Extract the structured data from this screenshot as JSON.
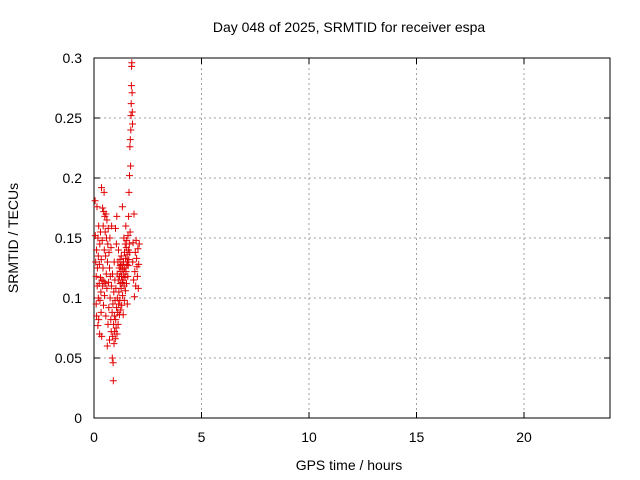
{
  "chart_data": {
    "type": "scatter",
    "title": "Day 048 of 2025, SRMTID for receiver espa",
    "xlabel": "GPS time / hours",
    "ylabel": "SRMTID / TECUs",
    "xlim": [
      0,
      24
    ],
    "ylim": [
      0,
      0.3
    ],
    "xticks": [
      0,
      5,
      10,
      15,
      20
    ],
    "xtick_labels": [
      "0",
      "5",
      "10",
      "15",
      "20"
    ],
    "yticks": [
      0,
      0.05,
      0.1,
      0.15,
      0.2,
      0.25,
      0.3
    ],
    "ytick_labels": [
      "0",
      "0.05",
      "0.1",
      "0.15",
      "0.2",
      "0.25",
      "0.3"
    ],
    "grid": true,
    "marker": "+",
    "color": "#e00000",
    "series": [
      {
        "name": "SRMTID",
        "points": [
          [
            0.05,
            0.181
          ],
          [
            0.06,
            0.152
          ],
          [
            0.08,
            0.13
          ],
          [
            0.1,
            0.118
          ],
          [
            0.1,
            0.095
          ],
          [
            0.12,
            0.14
          ],
          [
            0.12,
            0.085
          ],
          [
            0.14,
            0.176
          ],
          [
            0.15,
            0.11
          ],
          [
            0.16,
            0.125
          ],
          [
            0.18,
            0.15
          ],
          [
            0.18,
            0.077
          ],
          [
            0.2,
            0.1
          ],
          [
            0.2,
            0.135
          ],
          [
            0.22,
            0.16
          ],
          [
            0.22,
            0.082
          ],
          [
            0.24,
            0.112
          ],
          [
            0.25,
            0.128
          ],
          [
            0.26,
            0.07
          ],
          [
            0.27,
            0.145
          ],
          [
            0.28,
            0.098
          ],
          [
            0.3,
            0.117
          ],
          [
            0.3,
            0.155
          ],
          [
            0.32,
            0.105
          ],
          [
            0.33,
            0.088
          ],
          [
            0.34,
            0.132
          ],
          [
            0.35,
            0.192
          ],
          [
            0.36,
            0.068
          ],
          [
            0.37,
            0.115
          ],
          [
            0.38,
            0.148
          ],
          [
            0.4,
            0.175
          ],
          [
            0.4,
            0.11
          ],
          [
            0.42,
            0.125
          ],
          [
            0.43,
            0.16
          ],
          [
            0.44,
            0.094
          ],
          [
            0.45,
            0.172
          ],
          [
            0.46,
            0.114
          ],
          [
            0.47,
            0.188
          ],
          [
            0.48,
            0.14
          ],
          [
            0.49,
            0.102
          ],
          [
            0.5,
            0.168
          ],
          [
            0.52,
            0.155
          ],
          [
            0.52,
            0.112
          ],
          [
            0.54,
            0.135
          ],
          [
            0.55,
            0.085
          ],
          [
            0.56,
            0.17
          ],
          [
            0.57,
            0.12
          ],
          [
            0.58,
            0.15
          ],
          [
            0.6,
            0.165
          ],
          [
            0.6,
            0.108
          ],
          [
            0.62,
            0.06
          ],
          [
            0.63,
            0.13
          ],
          [
            0.64,
            0.145
          ],
          [
            0.65,
            0.078
          ],
          [
            0.66,
            0.158
          ],
          [
            0.68,
            0.113
          ],
          [
            0.69,
            0.092
          ],
          [
            0.7,
            0.138
          ],
          [
            0.72,
            0.065
          ],
          [
            0.72,
            0.125
          ],
          [
            0.74,
            0.15
          ],
          [
            0.75,
            0.1
          ],
          [
            0.76,
            0.118
          ],
          [
            0.78,
            0.082
          ],
          [
            0.79,
            0.142
          ],
          [
            0.8,
            0.072
          ],
          [
            0.81,
            0.11
          ],
          [
            0.82,
            0.16
          ],
          [
            0.84,
            0.088
          ],
          [
            0.85,
            0.05
          ],
          [
            0.86,
            0.12
          ],
          [
            0.87,
            0.068
          ],
          [
            0.88,
            0.095
          ],
          [
            0.89,
            0.046
          ],
          [
            0.9,
            0.031
          ],
          [
            0.91,
            0.078
          ],
          [
            0.92,
            0.105
          ],
          [
            0.93,
            0.062
          ],
          [
            0.94,
            0.13
          ],
          [
            0.95,
            0.085
          ],
          [
            0.96,
            0.072
          ],
          [
            0.97,
            0.115
          ],
          [
            0.98,
            0.098
          ],
          [
            0.99,
            0.066
          ],
          [
            1.0,
            0.158
          ],
          [
            1.01,
            0.082
          ],
          [
            1.02,
            0.108
          ],
          [
            1.03,
            0.075
          ],
          [
            1.04,
            0.145
          ],
          [
            1.05,
            0.092
          ],
          [
            1.06,
            0.168
          ],
          [
            1.07,
            0.07
          ],
          [
            1.08,
            0.12
          ],
          [
            1.09,
            0.1
          ],
          [
            1.1,
            0.088
          ],
          [
            1.11,
            0.13
          ],
          [
            1.12,
            0.078
          ],
          [
            1.13,
            0.115
          ],
          [
            1.14,
            0.14
          ],
          [
            1.15,
            0.095
          ],
          [
            1.16,
            0.105
          ],
          [
            1.17,
            0.125
          ],
          [
            1.18,
            0.086
          ],
          [
            1.19,
            0.118
          ],
          [
            1.2,
            0.098
          ],
          [
            1.21,
            0.132
          ],
          [
            1.22,
            0.112
          ],
          [
            1.23,
            0.127
          ],
          [
            1.24,
            0.09
          ],
          [
            1.25,
            0.122
          ],
          [
            1.26,
            0.108
          ],
          [
            1.27,
            0.135
          ],
          [
            1.28,
            0.118
          ],
          [
            1.29,
            0.094
          ],
          [
            1.3,
            0.128
          ],
          [
            1.31,
            0.113
          ],
          [
            1.32,
            0.176
          ],
          [
            1.33,
            0.102
          ],
          [
            1.34,
            0.124
          ],
          [
            1.35,
            0.115
          ],
          [
            1.36,
            0.086
          ],
          [
            1.37,
            0.13
          ],
          [
            1.38,
            0.12
          ],
          [
            1.39,
            0.15
          ],
          [
            1.4,
            0.11
          ],
          [
            1.41,
            0.098
          ],
          [
            1.42,
            0.138
          ],
          [
            1.43,
            0.125
          ],
          [
            1.44,
            0.117
          ],
          [
            1.45,
            0.145
          ],
          [
            1.46,
            0.106
          ],
          [
            1.47,
            0.133
          ],
          [
            1.48,
            0.16
          ],
          [
            1.49,
            0.122
          ],
          [
            1.5,
            0.142
          ],
          [
            1.51,
            0.112
          ],
          [
            1.52,
            0.148
          ],
          [
            1.53,
            0.128
          ],
          [
            1.54,
            0.136
          ],
          [
            1.55,
            0.095
          ],
          [
            1.56,
            0.13
          ],
          [
            1.57,
            0.118
          ],
          [
            1.58,
            0.152
          ],
          [
            1.59,
            0.127
          ],
          [
            1.6,
            0.14
          ],
          [
            1.61,
            0.168
          ],
          [
            1.62,
            0.132
          ],
          [
            1.63,
            0.188
          ],
          [
            1.64,
            0.145
          ],
          [
            1.65,
            0.202
          ],
          [
            1.66,
            0.138
          ],
          [
            1.67,
            0.226
          ],
          [
            1.68,
            0.155
          ],
          [
            1.69,
            0.232
          ],
          [
            1.7,
            0.21
          ],
          [
            1.71,
            0.24
          ],
          [
            1.72,
            0.252
          ],
          [
            1.73,
            0.262
          ],
          [
            1.74,
            0.277
          ],
          [
            1.75,
            0.293
          ],
          [
            1.76,
            0.296
          ],
          [
            1.77,
            0.271
          ],
          [
            1.78,
            0.255
          ],
          [
            1.79,
            0.245
          ],
          [
            1.8,
            0.13
          ],
          [
            1.82,
            0.146
          ],
          [
            1.84,
            0.115
          ],
          [
            1.86,
            0.17
          ],
          [
            1.88,
            0.101
          ],
          [
            1.9,
            0.122
          ],
          [
            1.92,
            0.138
          ],
          [
            1.94,
            0.11
          ],
          [
            1.96,
            0.148
          ],
          [
            1.98,
            0.133
          ],
          [
            2.0,
            0.126
          ],
          [
            2.02,
            0.118
          ],
          [
            2.04,
            0.141
          ],
          [
            2.06,
            0.108
          ],
          [
            2.08,
            0.128
          ],
          [
            2.1,
            0.145
          ]
        ]
      }
    ]
  }
}
